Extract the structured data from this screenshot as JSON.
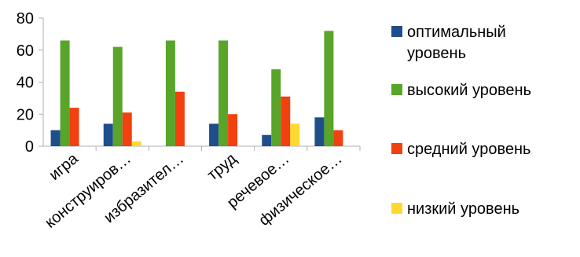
{
  "chart_data": {
    "type": "bar",
    "title": "",
    "xlabel": "",
    "ylabel": "",
    "ylim": [
      0,
      80
    ],
    "yticks": [
      0,
      20,
      40,
      60,
      80
    ],
    "grid": false,
    "legend_position": "right",
    "categories": [
      "игра",
      "конструиров…",
      "избразител…",
      "труд",
      "речевое…",
      "физическое…"
    ],
    "series": [
      {
        "name": "оптимальный уровень",
        "color": "#1f4e8c",
        "values": [
          10,
          14,
          0,
          14,
          7,
          18
        ]
      },
      {
        "name": "высокий уровень",
        "color": "#58a52a",
        "values": [
          66,
          62,
          66,
          66,
          48,
          72
        ]
      },
      {
        "name": "средний  уровень",
        "color": "#f2400e",
        "values": [
          24,
          21,
          34,
          20,
          31,
          10
        ]
      },
      {
        "name": "низкий  уровень",
        "color": "#ffd92e",
        "values": [
          0,
          3,
          0,
          0,
          14,
          0
        ]
      }
    ]
  }
}
